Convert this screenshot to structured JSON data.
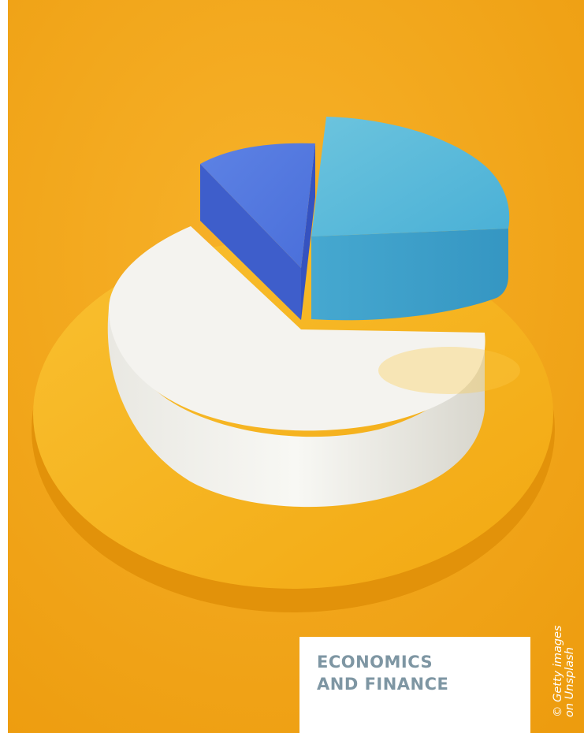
{
  "photo": {
    "subject": "3d-pie-chart-illustration",
    "colors": {
      "background": "#f3a514",
      "background_light": "#f6b52a",
      "base_disc": "#f7b521",
      "base_disc_side": "#e39307",
      "white_slice": "#f4f4f0",
      "white_slice_side": "#dedcd4",
      "blue_slice": "#5275dc",
      "blue_slice_side": "#3c58c4",
      "cyan_slice": "#58b6d6",
      "cyan_slice_side": "#3c9fc6"
    }
  },
  "category": {
    "line1": "ECONOMICS",
    "line2": "AND FINANCE",
    "color": "#7e96a3"
  },
  "credit": {
    "line1": "© Getty images",
    "line2": "on Unsplash"
  }
}
